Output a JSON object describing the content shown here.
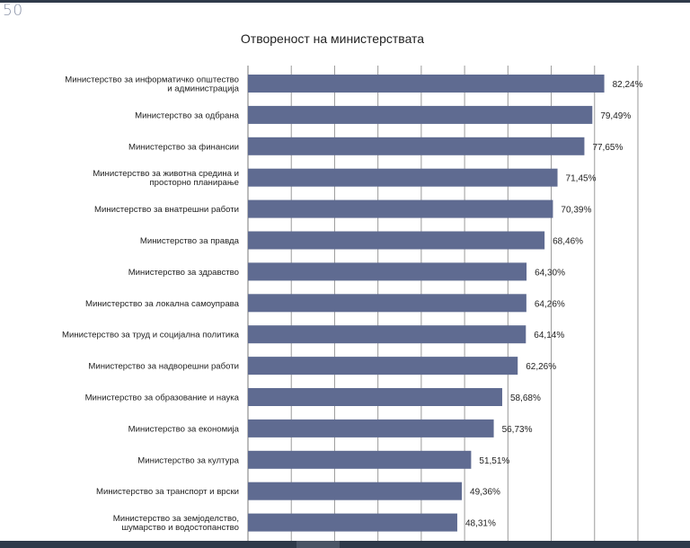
{
  "page": {
    "number": "50"
  },
  "chart_data": {
    "type": "bar",
    "orientation": "horizontal",
    "title": "Отвореност на министерствата",
    "xlabel": "",
    "ylabel": "",
    "xlim": [
      0,
      90
    ],
    "grid": true,
    "bar_color": "#5f6b91",
    "categories": [
      [
        "Министерство за информатичко општество",
        "и администрација"
      ],
      [
        "Министерство за одбрана"
      ],
      [
        "Министерство за финансии"
      ],
      [
        "Министерство за животна средина и",
        "просторно планирање"
      ],
      [
        "Министерство за внатрешни работи"
      ],
      [
        "Министерство за правда"
      ],
      [
        "Министерство за здравство"
      ],
      [
        "Министерство за локална самоуправа"
      ],
      [
        "Министерство за труд и социјална политика"
      ],
      [
        "Министерство за надворешни работи"
      ],
      [
        "Министерство за образование и наука"
      ],
      [
        "Министерство за економија"
      ],
      [
        "Министерство за култура"
      ],
      [
        "Министерство за транспорт и врски"
      ],
      [
        "Министерство за земјоделство,",
        "шумарство и водостопанство"
      ]
    ],
    "values": [
      82.24,
      79.49,
      77.65,
      71.45,
      70.39,
      68.46,
      64.3,
      64.26,
      64.14,
      62.26,
      58.68,
      56.73,
      51.51,
      49.36,
      48.31
    ],
    "value_labels": [
      "82,24%",
      "79,49%",
      "77,65%",
      "71,45%",
      "70,39%",
      "68,46%",
      "64,30%",
      "64,26%",
      "64,14%",
      "62,26%",
      "58,68%",
      "56,73%",
      "51,51%",
      "49,36%",
      "48,31%"
    ]
  }
}
